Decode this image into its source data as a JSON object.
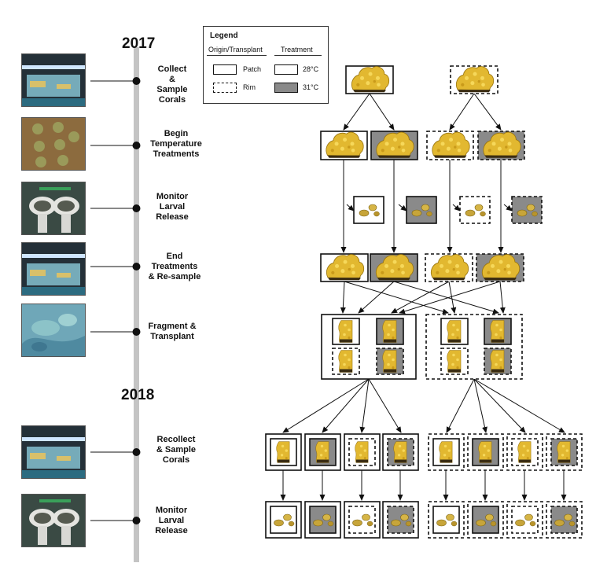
{
  "timeline": {
    "years": [
      "2017",
      "2018"
    ],
    "steps": [
      {
        "label": "Collect\n&\nSample\nCorals",
        "photo": "aquarium-tank"
      },
      {
        "label": "Begin\nTemperature\nTreatments",
        "photo": "coral-fragments-in-tank"
      },
      {
        "label": "Monitor\nLarval\nRelease",
        "photo": "larval-collection-cups"
      },
      {
        "label": "End\nTreatments\n& Re-sample",
        "photo": "aquarium-tank"
      },
      {
        "label": "Fragment &\nTransplant",
        "photo": "reef-underwater"
      },
      {
        "label": "Recollect\n& Sample\nCorals",
        "photo": "aquarium-tank"
      },
      {
        "label": "Monitor\nLarval\nRelease",
        "photo": "larval-collection-cups"
      }
    ]
  },
  "legend": {
    "title": "Legend",
    "col1_header": "Origin/Transplant",
    "col2_header": "Treatment",
    "patch": "Patch",
    "rim": "Rim",
    "temp_control": "28°C",
    "temp_heated": "31°C"
  },
  "colors": {
    "heated_fill": "#8a8a8a",
    "control_fill": "#ffffff",
    "timeline_bar": "#c4c4c4",
    "coral": "#e2b830"
  }
}
